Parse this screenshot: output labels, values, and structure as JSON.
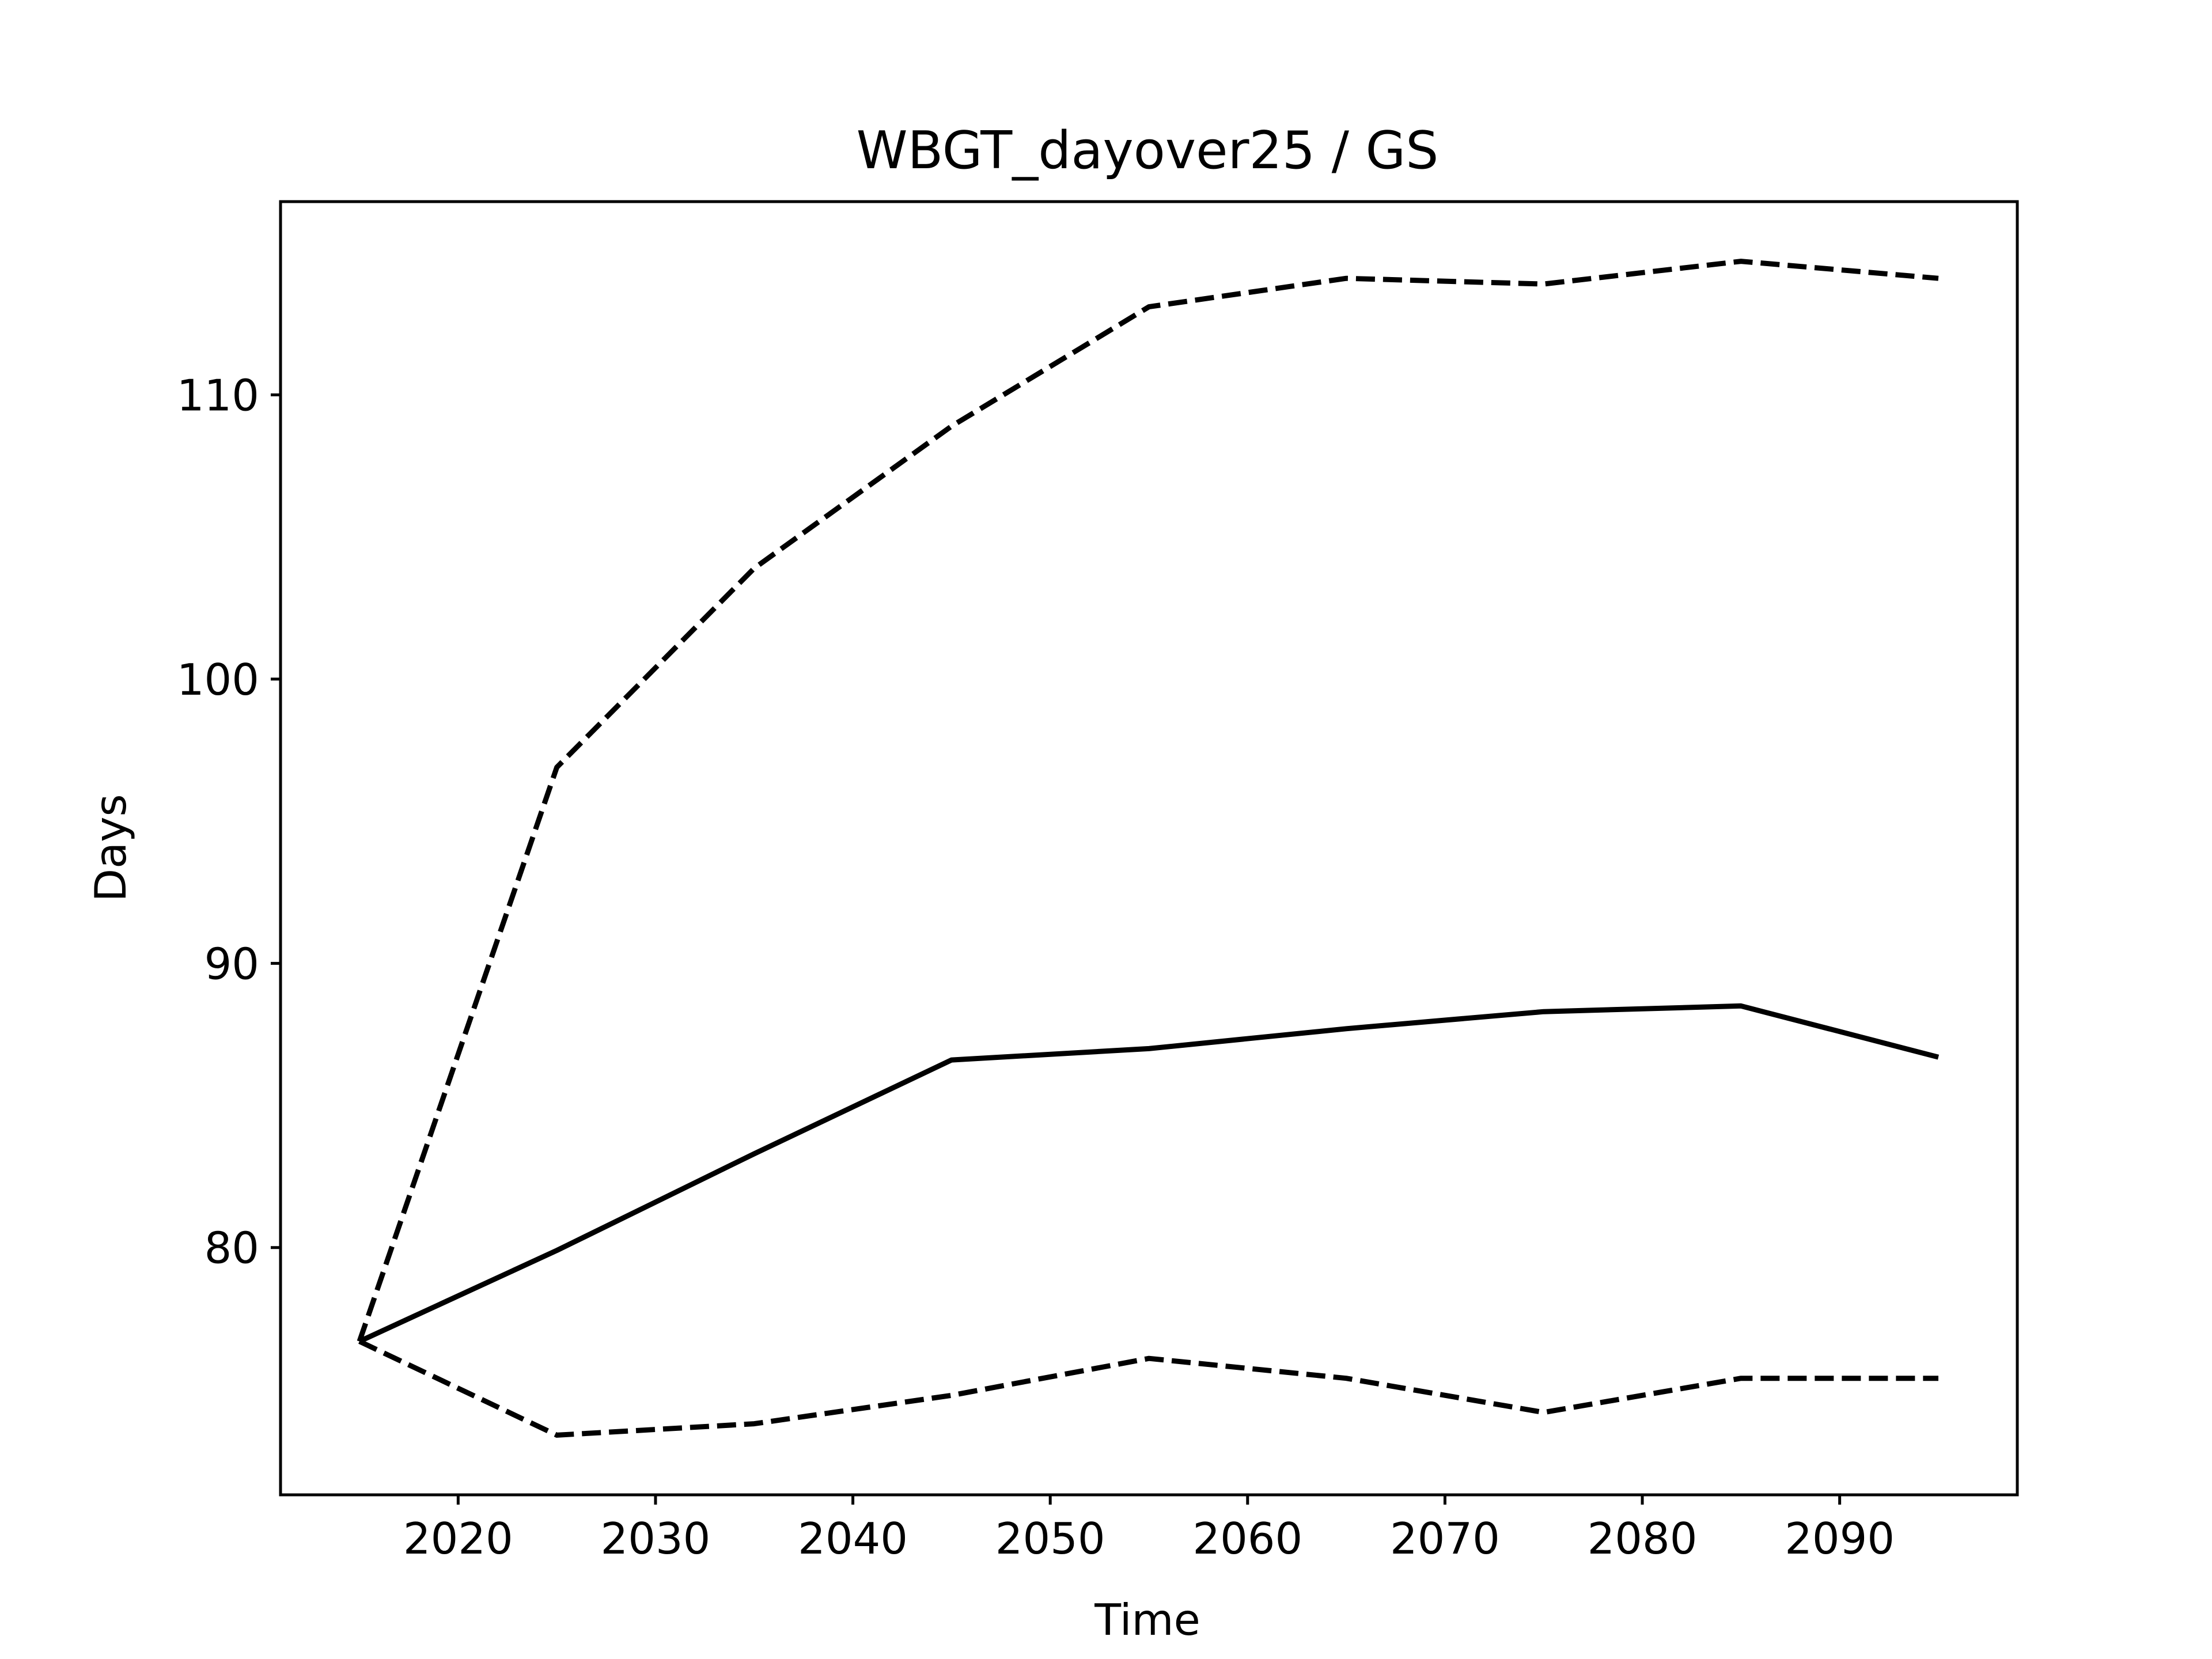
{
  "chart_data": {
    "type": "line",
    "title": "WBGT_dayover25 / GS",
    "xlabel": "Time",
    "ylabel": "Days",
    "xlim": [
      2011,
      2099
    ],
    "ylim": [
      71.3,
      116.8
    ],
    "xticks": [
      2020,
      2030,
      2040,
      2050,
      2060,
      2070,
      2080,
      2090
    ],
    "yticks": [
      80,
      90,
      100,
      110
    ],
    "grid": false,
    "legend": "none",
    "x": [
      2015,
      2025,
      2035,
      2045,
      2055,
      2065,
      2075,
      2085,
      2095
    ],
    "series": [
      {
        "style": "solid",
        "color": "#000000",
        "values": [
          76.7,
          79.9,
          83.3,
          86.6,
          87.0,
          87.7,
          88.3,
          88.5,
          86.7
        ]
      },
      {
        "style": "dashed",
        "color": "#000000",
        "values": [
          76.7,
          96.9,
          103.9,
          108.9,
          113.1,
          114.1,
          113.9,
          114.7,
          114.1
        ]
      },
      {
        "style": "dashed",
        "color": "#000000",
        "values": [
          76.7,
          73.4,
          73.8,
          74.8,
          76.1,
          75.4,
          74.2,
          75.4,
          75.4
        ]
      }
    ]
  }
}
